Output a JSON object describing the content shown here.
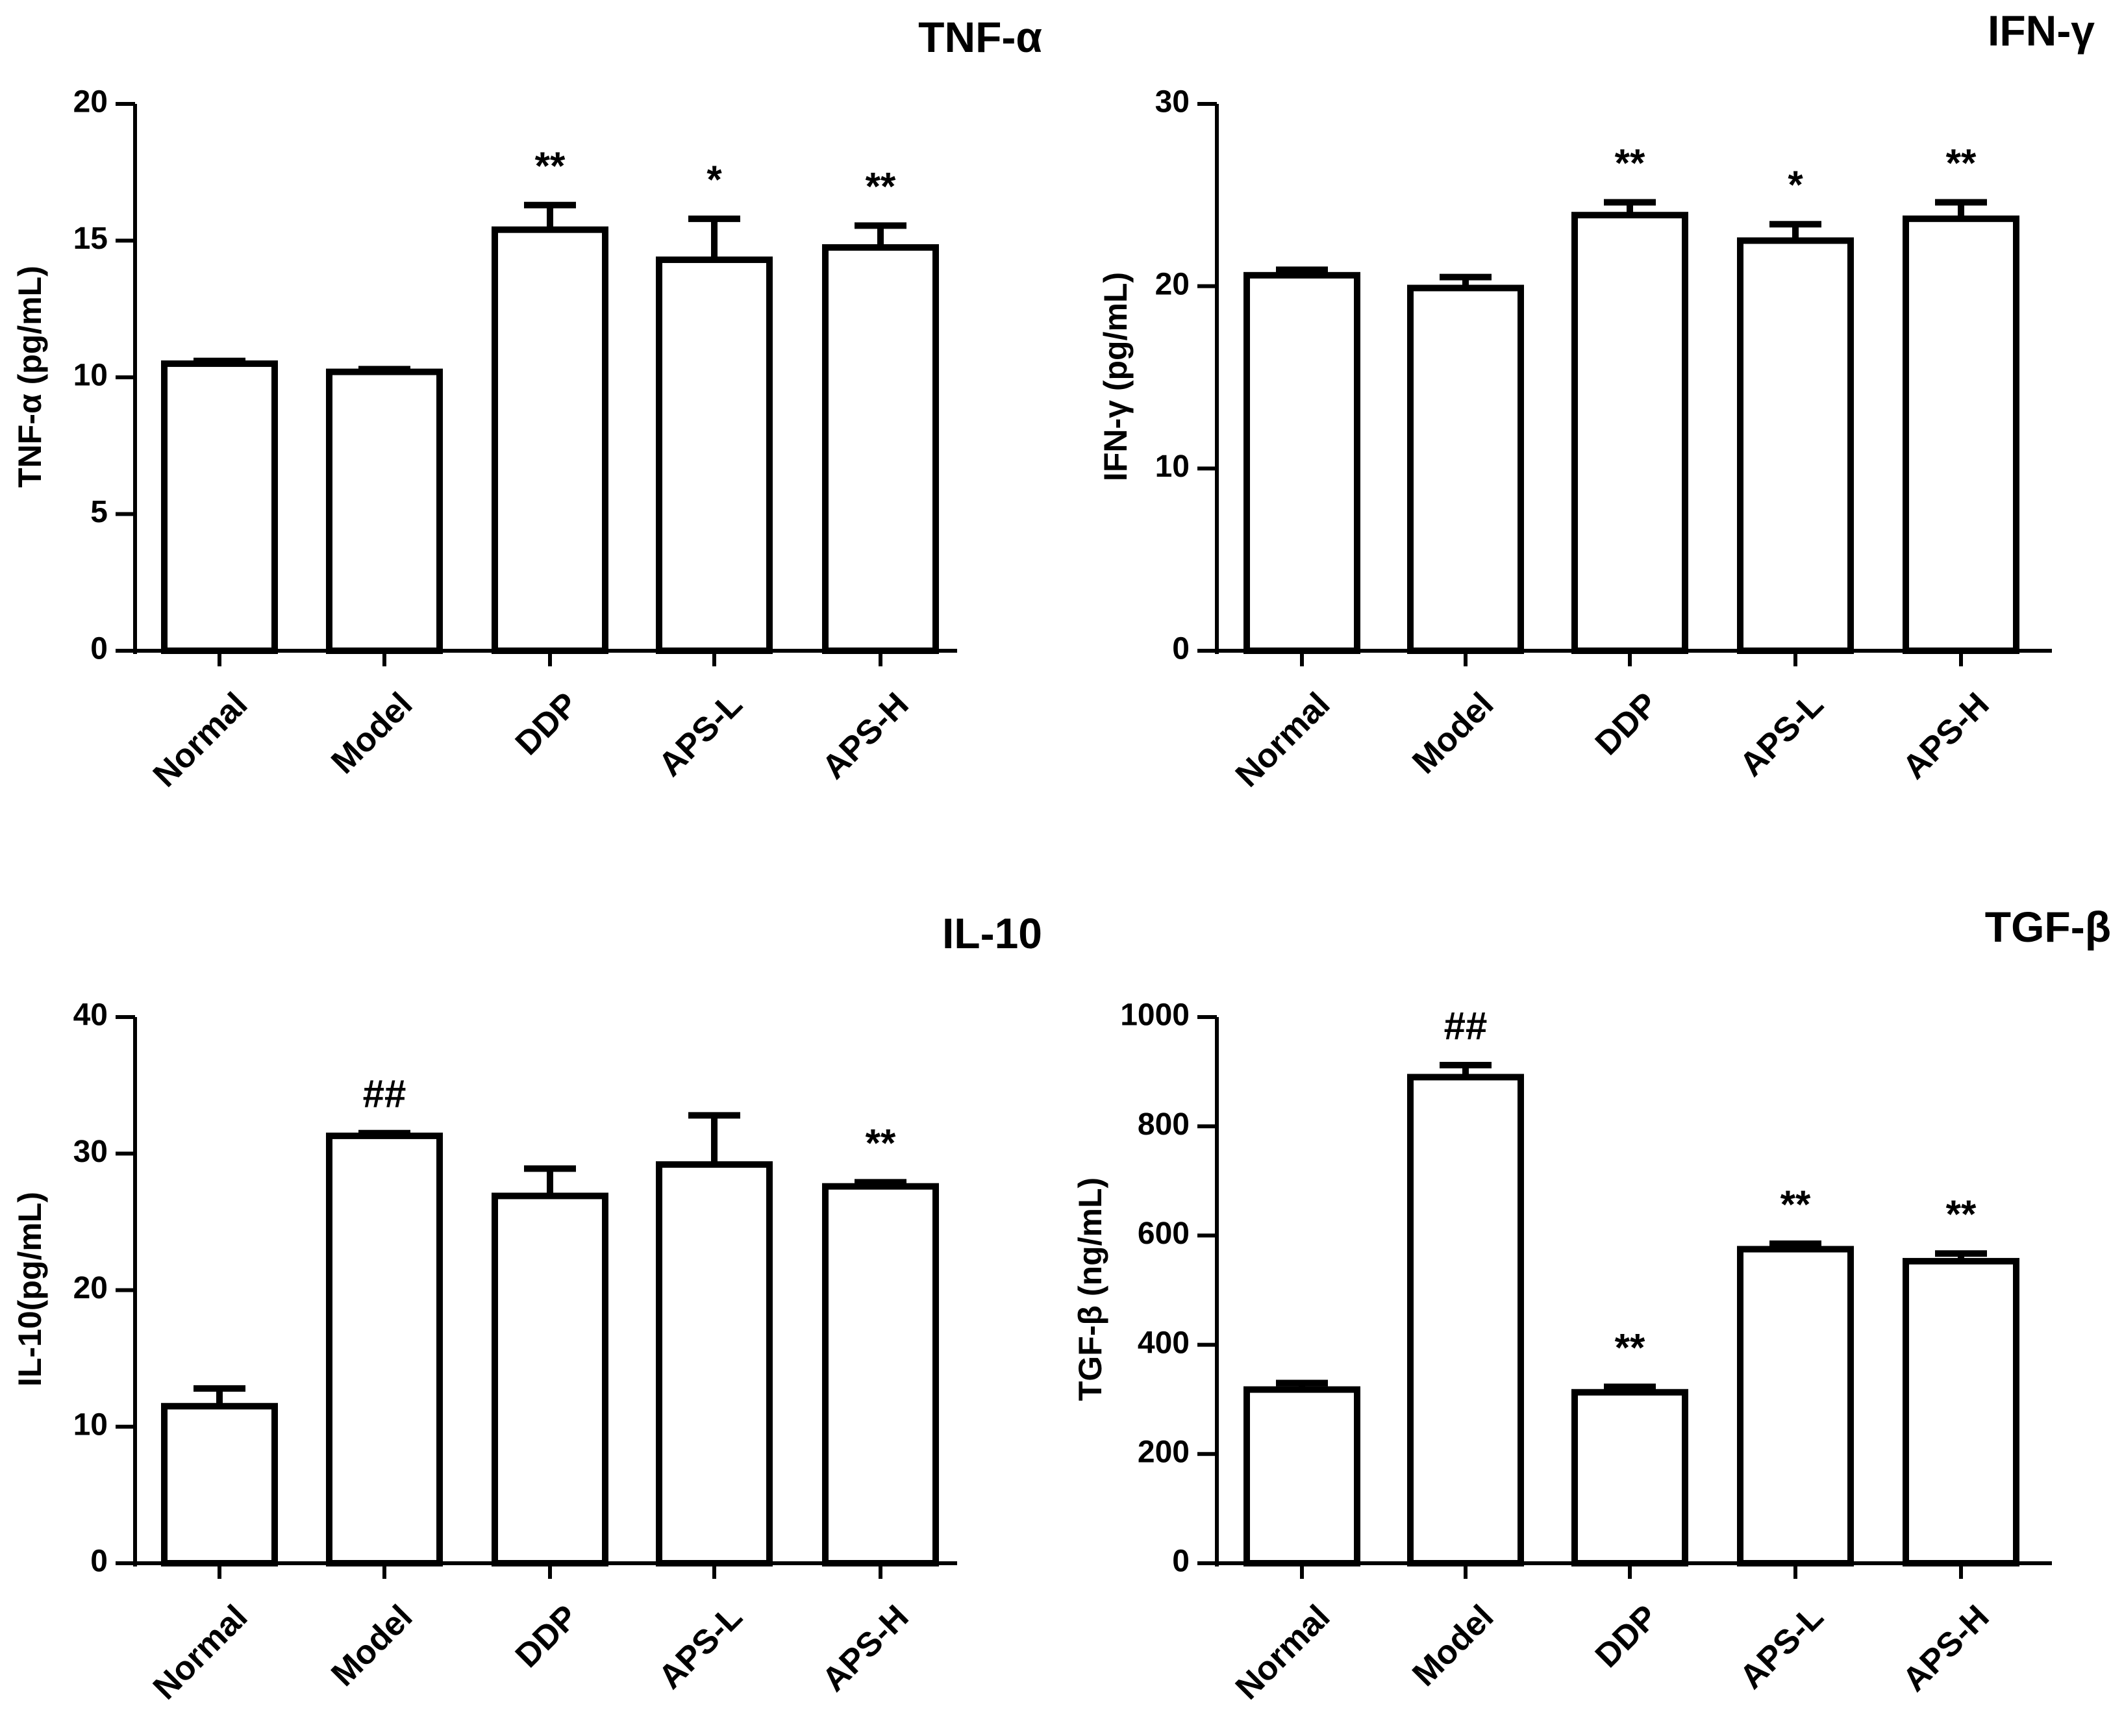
{
  "chart_data": [
    {
      "type": "bar",
      "title": "TNF-α",
      "ylabel": "TNF-α (pg/mL)",
      "xlabel": "",
      "categories": [
        "Normal",
        "Model",
        "DDP",
        "APS-L",
        "APS-H"
      ],
      "values": [
        10.5,
        10.2,
        15.4,
        14.3,
        14.75
      ],
      "errors": [
        0.1,
        0.1,
        0.9,
        1.5,
        0.8
      ],
      "annotations": [
        "",
        "",
        "**",
        "*",
        "**"
      ],
      "ylim": [
        0,
        20
      ],
      "yticks": [
        "0",
        "5",
        "10",
        "15",
        "20"
      ]
    },
    {
      "type": "bar",
      "title": "IFN-γ",
      "ylabel": "IFN-γ (pg/mL)",
      "xlabel": "",
      "categories": [
        "Normal",
        "Model",
        "DDP",
        "APS-L",
        "APS-H"
      ],
      "values": [
        20.6,
        19.9,
        23.9,
        22.5,
        23.7
      ],
      "errors": [
        0.3,
        0.6,
        0.7,
        0.9,
        0.9
      ],
      "annotations": [
        "",
        "",
        "**",
        "*",
        "**"
      ],
      "ylim": [
        0,
        30
      ],
      "yticks": [
        "0",
        "10",
        "20",
        "30"
      ]
    },
    {
      "type": "bar",
      "title": "IL-10",
      "ylabel": "IL-10(pg/mL)",
      "xlabel": "",
      "categories": [
        "Normal",
        "Model",
        "DDP",
        "APS-L",
        "APS-H"
      ],
      "values": [
        11.5,
        31.3,
        26.9,
        29.2,
        27.6
      ],
      "errors": [
        1.3,
        0.2,
        2.0,
        3.6,
        0.3
      ],
      "annotations": [
        "",
        "##",
        "",
        "",
        "**"
      ],
      "ylim": [
        0,
        40
      ],
      "yticks": [
        "0",
        "10",
        "20",
        "30",
        "40"
      ]
    },
    {
      "type": "bar",
      "title": "TGF-β",
      "ylabel": "TGF-β (ng/mL)",
      "xlabel": "",
      "categories": [
        "Normal",
        "Model",
        "DDP",
        "APS-L",
        "APS-H"
      ],
      "values": [
        318,
        890,
        313,
        575,
        553
      ],
      "errors": [
        12,
        22,
        10,
        10,
        14
      ],
      "annotations": [
        "",
        "##",
        "**",
        "**",
        "**"
      ],
      "ylim": [
        0,
        1000
      ],
      "yticks": [
        "0",
        "200",
        "400",
        "600",
        "800",
        "1000"
      ]
    }
  ]
}
